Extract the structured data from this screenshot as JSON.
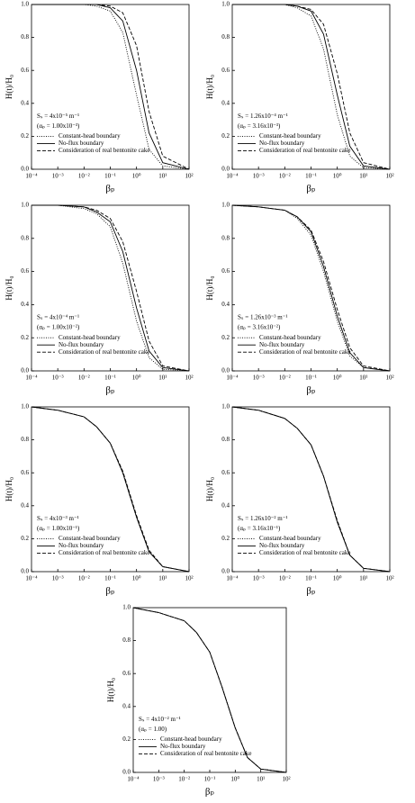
{
  "chart_data": [
    {
      "type": "line",
      "xlabel": "βₚ",
      "ylabel": "H(t)/H₀",
      "annotations": [
        "Sₛ = 4x10⁻⁵ m⁻¹",
        "(αₚ = 1.00x10⁻³)"
      ],
      "log_x": true,
      "xlim": [
        0.0001,
        100
      ],
      "ylim": [
        0,
        1
      ],
      "xticks": [
        {
          "value": 0.0001,
          "label": "10⁻⁴"
        },
        {
          "value": 0.001,
          "label": "10⁻³"
        },
        {
          "value": 0.01,
          "label": "10⁻²"
        },
        {
          "value": 0.1,
          "label": "10⁻¹"
        },
        {
          "value": 1,
          "label": "10⁰"
        },
        {
          "value": 10,
          "label": "10¹"
        },
        {
          "value": 100,
          "label": "10²"
        }
      ],
      "yticks": [
        {
          "value": 0,
          "label": "0.0"
        },
        0.2,
        0.4,
        0.6,
        0.8,
        {
          "value": 1,
          "label": "1.0"
        }
      ],
      "x": [
        0.0001,
        0.001,
        0.01,
        0.03,
        0.1,
        0.3,
        1,
        3,
        10,
        100
      ],
      "series": [
        {
          "name": "Constant-head boundary",
          "color": "#000000",
          "dash": "dotted",
          "values": [
            1,
            1,
            1,
            0.99,
            0.96,
            0.83,
            0.45,
            0.12,
            0.02,
            0
          ]
        },
        {
          "name": "No-flux boundary",
          "color": "#000000",
          "dash": "solid",
          "values": [
            1,
            1,
            1,
            1,
            0.98,
            0.9,
            0.6,
            0.22,
            0.04,
            0
          ]
        },
        {
          "name": "Consideration of real bentonite cake",
          "color": "#000000",
          "dash": "dashed",
          "values": [
            1,
            1,
            1,
            1,
            0.99,
            0.95,
            0.75,
            0.35,
            0.08,
            0
          ]
        }
      ]
    },
    {
      "type": "line",
      "xlabel": "βₚ",
      "ylabel": "H(t)/H₀",
      "annotations": [
        "Sₛ = 1.26x10⁻⁴ m⁻¹",
        "(αₚ = 3.16x10⁻³)"
      ],
      "log_x": true,
      "xlim": [
        0.0001,
        100
      ],
      "ylim": [
        0,
        1
      ],
      "xticks": [
        {
          "value": 0.0001,
          "label": "10⁻⁴"
        },
        {
          "value": 0.001,
          "label": "10⁻³"
        },
        {
          "value": 0.01,
          "label": "10⁻²"
        },
        {
          "value": 0.1,
          "label": "10⁻¹"
        },
        {
          "value": 1,
          "label": "10⁰"
        },
        {
          "value": 10,
          "label": "10¹"
        },
        {
          "value": 100,
          "label": "10²"
        }
      ],
      "yticks": [
        {
          "value": 0,
          "label": "0.0"
        },
        0.2,
        0.4,
        0.6,
        0.8,
        {
          "value": 1,
          "label": "1.0"
        }
      ],
      "x": [
        0.0001,
        0.001,
        0.01,
        0.03,
        0.1,
        0.3,
        1,
        3,
        10,
        100
      ],
      "series": [
        {
          "name": "Constant-head boundary",
          "color": "#000000",
          "dash": "dotted",
          "values": [
            1,
            1,
            1,
            0.98,
            0.93,
            0.73,
            0.33,
            0.08,
            0.01,
            0
          ]
        },
        {
          "name": "No-flux boundary",
          "color": "#000000",
          "dash": "solid",
          "values": [
            1,
            1,
            1,
            0.99,
            0.96,
            0.82,
            0.45,
            0.14,
            0.02,
            0
          ]
        },
        {
          "name": "Consideration of real bentonite cake",
          "color": "#000000",
          "dash": "dashed",
          "values": [
            1,
            1,
            1,
            0.99,
            0.97,
            0.88,
            0.58,
            0.22,
            0.04,
            0
          ]
        }
      ]
    },
    {
      "type": "line",
      "xlabel": "βₚ",
      "ylabel": "H(t)/H₀",
      "annotations": [
        "Sₛ = 4x10⁻⁴ m⁻¹",
        "(αₚ = 1.00x10⁻²)"
      ],
      "log_x": true,
      "xlim": [
        0.0001,
        100
      ],
      "ylim": [
        0,
        1
      ],
      "xticks": [
        {
          "value": 0.0001,
          "label": "10⁻⁴"
        },
        {
          "value": 0.001,
          "label": "10⁻³"
        },
        {
          "value": 0.01,
          "label": "10⁻²"
        },
        {
          "value": 0.1,
          "label": "10⁻¹"
        },
        {
          "value": 1,
          "label": "10⁰"
        },
        {
          "value": 10,
          "label": "10¹"
        },
        {
          "value": 100,
          "label": "10²"
        }
      ],
      "yticks": [
        {
          "value": 0,
          "label": "0.0"
        },
        0.2,
        0.4,
        0.6,
        0.8,
        {
          "value": 1,
          "label": "1.0"
        }
      ],
      "x": [
        0.0001,
        0.001,
        0.01,
        0.03,
        0.1,
        0.3,
        1,
        3,
        10,
        100
      ],
      "series": [
        {
          "name": "Constant-head boundary",
          "color": "#000000",
          "dash": "dotted",
          "values": [
            1,
            1,
            0.98,
            0.95,
            0.87,
            0.65,
            0.3,
            0.08,
            0.01,
            0
          ]
        },
        {
          "name": "No-flux boundary",
          "color": "#000000",
          "dash": "solid",
          "values": [
            1,
            1,
            0.99,
            0.96,
            0.9,
            0.72,
            0.38,
            0.12,
            0.02,
            0
          ]
        },
        {
          "name": "Consideration of real bentonite cake",
          "color": "#000000",
          "dash": "dashed",
          "values": [
            1,
            1,
            0.99,
            0.97,
            0.92,
            0.78,
            0.48,
            0.18,
            0.03,
            0
          ]
        }
      ]
    },
    {
      "type": "line",
      "xlabel": "βₚ",
      "ylabel": "H(t)/H₀",
      "annotations": [
        "Sₛ = 1.26x10⁻³ m⁻¹",
        "(αₚ = 3.16x10⁻²)"
      ],
      "log_x": true,
      "xlim": [
        0.0001,
        100
      ],
      "ylim": [
        0,
        1
      ],
      "xticks": [
        {
          "value": 0.0001,
          "label": "10⁻⁴"
        },
        {
          "value": 0.001,
          "label": "10⁻³"
        },
        {
          "value": 0.01,
          "label": "10⁻²"
        },
        {
          "value": 0.1,
          "label": "10⁻¹"
        },
        {
          "value": 1,
          "label": "10⁰"
        },
        {
          "value": 10,
          "label": "10¹"
        },
        {
          "value": 100,
          "label": "10²"
        }
      ],
      "yticks": [
        {
          "value": 0,
          "label": "0.0"
        },
        0.2,
        0.4,
        0.6,
        0.8,
        {
          "value": 1,
          "label": "1.0"
        }
      ],
      "x": [
        0.0001,
        0.001,
        0.01,
        0.03,
        0.1,
        0.3,
        1,
        3,
        10,
        100
      ],
      "series": [
        {
          "name": "Constant-head boundary",
          "color": "#000000",
          "dash": "dotted",
          "values": [
            1,
            0.99,
            0.97,
            0.92,
            0.82,
            0.6,
            0.3,
            0.09,
            0.02,
            0
          ]
        },
        {
          "name": "No-flux boundary",
          "color": "#000000",
          "dash": "solid",
          "values": [
            1,
            0.99,
            0.97,
            0.93,
            0.84,
            0.63,
            0.33,
            0.11,
            0.02,
            0
          ]
        },
        {
          "name": "Consideration of real bentonite cake",
          "color": "#000000",
          "dash": "dashed",
          "values": [
            1,
            0.99,
            0.97,
            0.93,
            0.85,
            0.66,
            0.37,
            0.14,
            0.03,
            0
          ]
        }
      ]
    },
    {
      "type": "line",
      "xlabel": "βₚ",
      "ylabel": "H(t)/H₀",
      "annotations": [
        "Sₛ = 4x10⁻³ m⁻¹",
        "(αₚ = 1.00x10⁻¹)"
      ],
      "log_x": true,
      "xlim": [
        0.0001,
        100
      ],
      "ylim": [
        0,
        1
      ],
      "xticks": [
        {
          "value": 0.0001,
          "label": "10⁻⁴"
        },
        {
          "value": 0.001,
          "label": "10⁻³"
        },
        {
          "value": 0.01,
          "label": "10⁻²"
        },
        {
          "value": 0.1,
          "label": "10⁻¹"
        },
        {
          "value": 1,
          "label": "10⁰"
        },
        {
          "value": 10,
          "label": "10¹"
        },
        {
          "value": 100,
          "label": "10²"
        }
      ],
      "yticks": [
        {
          "value": 0,
          "label": "0.0"
        },
        0.2,
        0.4,
        0.6,
        0.8,
        {
          "value": 1,
          "label": "1.0"
        }
      ],
      "x": [
        0.0001,
        0.001,
        0.01,
        0.03,
        0.1,
        0.3,
        1,
        3,
        10,
        100
      ],
      "series": [
        {
          "name": "Constant-head boundary",
          "color": "#000000",
          "dash": "dotted",
          "values": [
            1,
            0.98,
            0.94,
            0.88,
            0.78,
            0.6,
            0.33,
            0.12,
            0.03,
            0
          ]
        },
        {
          "name": "No-flux boundary",
          "color": "#000000",
          "dash": "solid",
          "values": [
            1,
            0.98,
            0.94,
            0.88,
            0.78,
            0.6,
            0.33,
            0.12,
            0.03,
            0
          ]
        },
        {
          "name": "Consideration of real bentonite cake",
          "color": "#000000",
          "dash": "dashed",
          "values": [
            1,
            0.98,
            0.94,
            0.88,
            0.78,
            0.61,
            0.34,
            0.13,
            0.03,
            0
          ]
        }
      ]
    },
    {
      "type": "line",
      "xlabel": "βₚ",
      "ylabel": "H(t)/H₀",
      "annotations": [
        "Sₛ = 1.26x10⁻² m⁻¹",
        "(αₚ = 3.16x10⁻¹)"
      ],
      "log_x": true,
      "xlim": [
        0.0001,
        100
      ],
      "ylim": [
        0,
        1
      ],
      "xticks": [
        {
          "value": 0.0001,
          "label": "10⁻⁴"
        },
        {
          "value": 0.001,
          "label": "10⁻³"
        },
        {
          "value": 0.01,
          "label": "10⁻²"
        },
        {
          "value": 0.1,
          "label": "10⁻¹"
        },
        {
          "value": 1,
          "label": "10⁰"
        },
        {
          "value": 10,
          "label": "10¹"
        },
        {
          "value": 100,
          "label": "10²"
        }
      ],
      "yticks": [
        {
          "value": 0,
          "label": "0.0"
        },
        0.2,
        0.4,
        0.6,
        0.8,
        {
          "value": 1,
          "label": "1.0"
        }
      ],
      "x": [
        0.0001,
        0.001,
        0.01,
        0.03,
        0.1,
        0.3,
        1,
        3,
        10,
        100
      ],
      "series": [
        {
          "name": "Constant-head boundary",
          "color": "#000000",
          "dash": "dotted",
          "values": [
            1,
            0.98,
            0.93,
            0.87,
            0.77,
            0.58,
            0.3,
            0.1,
            0.02,
            0
          ]
        },
        {
          "name": "No-flux boundary",
          "color": "#000000",
          "dash": "solid",
          "values": [
            1,
            0.98,
            0.93,
            0.87,
            0.77,
            0.58,
            0.3,
            0.1,
            0.02,
            0
          ]
        },
        {
          "name": "Consideration of real bentonite cake",
          "color": "#000000",
          "dash": "dashed",
          "values": [
            1,
            0.98,
            0.93,
            0.87,
            0.77,
            0.58,
            0.31,
            0.1,
            0.02,
            0
          ]
        }
      ]
    },
    {
      "type": "line",
      "xlabel": "βₚ",
      "ylabel": "H(t)/H₀",
      "annotations": [
        "Sₛ = 4x10⁻² m⁻¹",
        "(αₚ = 1.00)"
      ],
      "log_x": true,
      "xlim": [
        0.0001,
        100
      ],
      "ylim": [
        0,
        1
      ],
      "xticks": [
        {
          "value": 0.0001,
          "label": "10⁻⁴"
        },
        {
          "value": 0.001,
          "label": "10⁻³"
        },
        {
          "value": 0.01,
          "label": "10⁻²"
        },
        {
          "value": 0.1,
          "label": "10⁻¹"
        },
        {
          "value": 1,
          "label": "10⁰"
        },
        {
          "value": 10,
          "label": "10¹"
        },
        {
          "value": 100,
          "label": "10²"
        }
      ],
      "yticks": [
        {
          "value": 0,
          "label": "0.0"
        },
        0.2,
        0.4,
        0.6,
        0.8,
        {
          "value": 1,
          "label": "1.0"
        }
      ],
      "x": [
        0.0001,
        0.001,
        0.01,
        0.03,
        0.1,
        0.3,
        1,
        3,
        10,
        100
      ],
      "series": [
        {
          "name": "Constant-head boundary",
          "color": "#000000",
          "dash": "dotted",
          "values": [
            1,
            0.97,
            0.92,
            0.85,
            0.73,
            0.52,
            0.27,
            0.09,
            0.02,
            0
          ]
        },
        {
          "name": "No-flux boundary",
          "color": "#000000",
          "dash": "solid",
          "values": [
            1,
            0.97,
            0.92,
            0.85,
            0.73,
            0.52,
            0.27,
            0.09,
            0.02,
            0
          ]
        },
        {
          "name": "Consideration of real bentonite cake",
          "color": "#000000",
          "dash": "dashed",
          "values": [
            1,
            0.97,
            0.92,
            0.85,
            0.73,
            0.52,
            0.27,
            0.09,
            0.02,
            0
          ]
        }
      ]
    }
  ]
}
